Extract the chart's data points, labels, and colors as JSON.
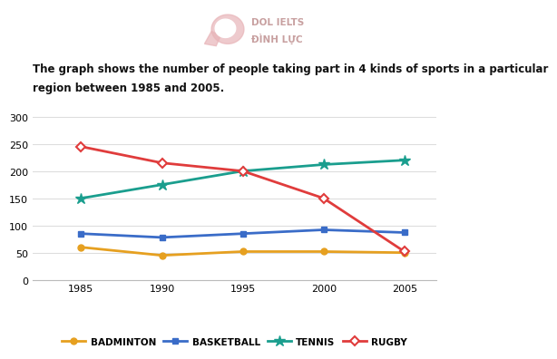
{
  "years": [
    1985,
    1990,
    1995,
    2000,
    2005
  ],
  "badminton": [
    60,
    45,
    52,
    52,
    50
  ],
  "basketball": [
    85,
    78,
    85,
    92,
    87
  ],
  "tennis": [
    150,
    175,
    200,
    212,
    220
  ],
  "rugby": [
    245,
    215,
    200,
    150,
    52
  ],
  "badminton_color": "#e6a020",
  "basketball_color": "#3a6cc8",
  "tennis_color": "#1a9e8e",
  "rugby_color": "#e03c3c",
  "title_line1": "The graph shows the number of people taking part in 4 kinds of sports in a particular",
  "title_line2": "region between 1985 and 2005.",
  "title_fontsize": 8.5,
  "title_fontweight": "bold",
  "ylim": [
    0,
    320
  ],
  "yticks": [
    0,
    50,
    100,
    150,
    200,
    250,
    300
  ],
  "xticks": [
    1985,
    1990,
    1995,
    2000,
    2005
  ],
  "legend_labels": [
    "BADMINTON",
    "BASKETBALL",
    "TENNIS",
    "RUGBY"
  ],
  "background_color": "#ffffff",
  "grid_color": "#dddddd",
  "linewidth": 2.0,
  "logo_text1": "DOL IELTS",
  "logo_text2": "ĐÌNH LỰC",
  "logo_color": "#c8a0a0"
}
